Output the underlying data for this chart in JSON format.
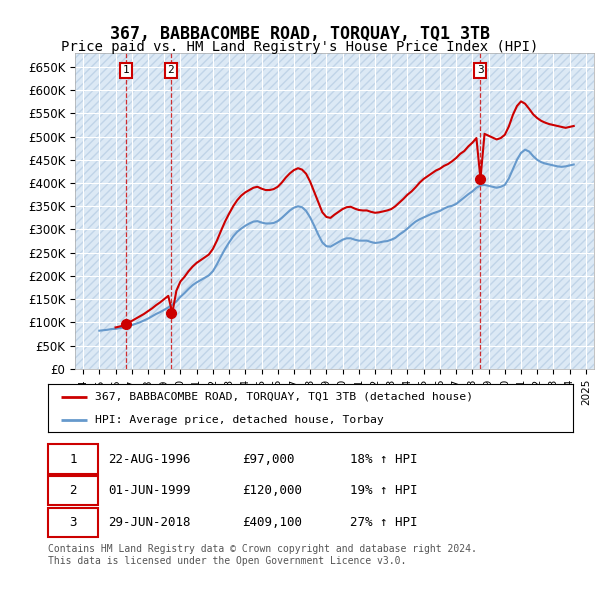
{
  "title": "367, BABBACOMBE ROAD, TORQUAY, TQ1 3TB",
  "subtitle": "Price paid vs. HM Land Registry's House Price Index (HPI)",
  "title_fontsize": 12,
  "subtitle_fontsize": 10,
  "bg_color": "#dce9f5",
  "hatch_color": "#c0d4e8",
  "red_color": "#cc0000",
  "blue_color": "#6699cc",
  "ylim": [
    0,
    680000
  ],
  "yticks": [
    0,
    50000,
    100000,
    150000,
    200000,
    250000,
    300000,
    350000,
    400000,
    450000,
    500000,
    550000,
    600000,
    650000
  ],
  "ytick_labels": [
    "£0",
    "£50K",
    "£100K",
    "£150K",
    "£200K",
    "£250K",
    "£300K",
    "£350K",
    "£400K",
    "£450K",
    "£500K",
    "£550K",
    "£600K",
    "£650K"
  ],
  "xlim_start": 1993.5,
  "xlim_end": 2025.5,
  "xtick_years": [
    1994,
    1995,
    1996,
    1997,
    1998,
    1999,
    2000,
    2001,
    2002,
    2003,
    2004,
    2005,
    2006,
    2007,
    2008,
    2009,
    2010,
    2011,
    2012,
    2013,
    2014,
    2015,
    2016,
    2017,
    2018,
    2019,
    2020,
    2021,
    2022,
    2023,
    2024,
    2025
  ],
  "sale_dates": [
    1996.644,
    1999.415,
    2018.49
  ],
  "sale_prices": [
    97000,
    120000,
    409100
  ],
  "sale_labels": [
    "1",
    "2",
    "3"
  ],
  "legend_red": "367, BABBACOMBE ROAD, TORQUAY, TQ1 3TB (detached house)",
  "legend_blue": "HPI: Average price, detached house, Torbay",
  "table_rows": [
    [
      "1",
      "22-AUG-1996",
      "£97,000",
      "18% ↑ HPI"
    ],
    [
      "2",
      "01-JUN-1999",
      "£120,000",
      "19% ↑ HPI"
    ],
    [
      "3",
      "29-JUN-2018",
      "£409,100",
      "27% ↑ HPI"
    ]
  ],
  "footer": "Contains HM Land Registry data © Crown copyright and database right 2024.\nThis data is licensed under the Open Government Licence v3.0.",
  "hpi_years": [
    1995.0,
    1995.25,
    1995.5,
    1995.75,
    1996.0,
    1996.25,
    1996.5,
    1996.75,
    1997.0,
    1997.25,
    1997.5,
    1997.75,
    1998.0,
    1998.25,
    1998.5,
    1998.75,
    1999.0,
    1999.25,
    1999.5,
    1999.75,
    2000.0,
    2000.25,
    2000.5,
    2000.75,
    2001.0,
    2001.25,
    2001.5,
    2001.75,
    2002.0,
    2002.25,
    2002.5,
    2002.75,
    2003.0,
    2003.25,
    2003.5,
    2003.75,
    2004.0,
    2004.25,
    2004.5,
    2004.75,
    2005.0,
    2005.25,
    2005.5,
    2005.75,
    2006.0,
    2006.25,
    2006.5,
    2006.75,
    2007.0,
    2007.25,
    2007.5,
    2007.75,
    2008.0,
    2008.25,
    2008.5,
    2008.75,
    2009.0,
    2009.25,
    2009.5,
    2009.75,
    2010.0,
    2010.25,
    2010.5,
    2010.75,
    2011.0,
    2011.25,
    2011.5,
    2011.75,
    2012.0,
    2012.25,
    2012.5,
    2012.75,
    2013.0,
    2013.25,
    2013.5,
    2013.75,
    2014.0,
    2014.25,
    2014.5,
    2014.75,
    2015.0,
    2015.25,
    2015.5,
    2015.75,
    2016.0,
    2016.25,
    2016.5,
    2016.75,
    2017.0,
    2017.25,
    2017.5,
    2017.75,
    2018.0,
    2018.25,
    2018.5,
    2018.75,
    2019.0,
    2019.25,
    2019.5,
    2019.75,
    2020.0,
    2020.25,
    2020.5,
    2020.75,
    2021.0,
    2021.25,
    2021.5,
    2021.75,
    2022.0,
    2022.25,
    2022.5,
    2022.75,
    2023.0,
    2023.25,
    2023.5,
    2023.75,
    2024.0,
    2024.25
  ],
  "hpi_values": [
    82000,
    83000,
    84000,
    85500,
    86000,
    87500,
    89000,
    91000,
    94000,
    97000,
    100000,
    104000,
    108000,
    113000,
    118000,
    122000,
    127000,
    132000,
    138000,
    145000,
    155000,
    163000,
    172000,
    180000,
    186000,
    191000,
    196000,
    201000,
    210000,
    225000,
    242000,
    258000,
    272000,
    285000,
    295000,
    302000,
    308000,
    313000,
    317000,
    318000,
    315000,
    313000,
    313000,
    314000,
    318000,
    325000,
    333000,
    341000,
    347000,
    350000,
    348000,
    340000,
    326000,
    308000,
    289000,
    272000,
    264000,
    263000,
    268000,
    273000,
    278000,
    281000,
    281000,
    278000,
    276000,
    276000,
    276000,
    273000,
    271000,
    272000,
    274000,
    275000,
    278000,
    282000,
    289000,
    295000,
    302000,
    310000,
    317000,
    322000,
    326000,
    330000,
    334000,
    337000,
    340000,
    345000,
    349000,
    351000,
    355000,
    362000,
    369000,
    376000,
    382000,
    390000,
    395000,
    396000,
    394000,
    392000,
    390000,
    392000,
    396000,
    410000,
    430000,
    450000,
    465000,
    472000,
    468000,
    458000,
    450000,
    445000,
    442000,
    440000,
    438000,
    436000,
    435000,
    436000,
    438000,
    440000
  ],
  "red_years": [
    1996.0,
    1996.25,
    1996.5,
    1996.75,
    1997.0,
    1997.25,
    1997.5,
    1997.75,
    1998.0,
    1998.25,
    1998.5,
    1998.75,
    1999.0,
    1999.25,
    1999.5,
    1999.75,
    2000.0,
    2000.25,
    2000.5,
    2000.75,
    2001.0,
    2001.25,
    2001.5,
    2001.75,
    2002.0,
    2002.25,
    2002.5,
    2002.75,
    2003.0,
    2003.25,
    2003.5,
    2003.75,
    2004.0,
    2004.25,
    2004.5,
    2004.75,
    2005.0,
    2005.25,
    2005.5,
    2005.75,
    2006.0,
    2006.25,
    2006.5,
    2006.75,
    2007.0,
    2007.25,
    2007.5,
    2007.75,
    2008.0,
    2008.25,
    2008.5,
    2008.75,
    2009.0,
    2009.25,
    2009.5,
    2009.75,
    2010.0,
    2010.25,
    2010.5,
    2010.75,
    2011.0,
    2011.25,
    2011.5,
    2011.75,
    2012.0,
    2012.25,
    2012.5,
    2012.75,
    2013.0,
    2013.25,
    2013.5,
    2013.75,
    2014.0,
    2014.25,
    2014.5,
    2014.75,
    2015.0,
    2015.25,
    2015.5,
    2015.75,
    2016.0,
    2016.25,
    2016.5,
    2016.75,
    2017.0,
    2017.25,
    2017.5,
    2017.75,
    2018.0,
    2018.25,
    2018.5,
    2018.75,
    2019.0,
    2019.25,
    2019.5,
    2019.75,
    2020.0,
    2020.25,
    2020.5,
    2020.75,
    2021.0,
    2021.25,
    2021.5,
    2021.75,
    2022.0,
    2022.25,
    2022.5,
    2022.75,
    2023.0,
    2023.25,
    2023.5,
    2023.75,
    2024.0,
    2024.25
  ],
  "red_values": [
    89000,
    91000,
    93000,
    99000,
    103000,
    108000,
    113000,
    118000,
    124000,
    130000,
    137000,
    143000,
    150000,
    157000,
    120000,
    168000,
    188000,
    198000,
    210000,
    220000,
    228000,
    234000,
    240000,
    246000,
    258000,
    276000,
    297000,
    317000,
    334000,
    350000,
    363000,
    373000,
    380000,
    385000,
    390000,
    392000,
    388000,
    385000,
    385000,
    387000,
    392000,
    401000,
    412000,
    421000,
    428000,
    432000,
    429000,
    420000,
    403000,
    381000,
    359000,
    337000,
    327000,
    325000,
    332000,
    338000,
    344000,
    348000,
    349000,
    345000,
    342000,
    341000,
    341000,
    338000,
    336000,
    337000,
    339000,
    341000,
    344000,
    350000,
    358000,
    366000,
    375000,
    382000,
    391000,
    401000,
    409000,
    415000,
    421000,
    427000,
    431000,
    437000,
    441000,
    447000,
    454000,
    463000,
    469000,
    479000,
    487000,
    497000,
    409100,
    506000,
    502000,
    498000,
    494000,
    497000,
    504000,
    522000,
    547000,
    566000,
    576000,
    571000,
    560000,
    548000,
    540000,
    534000,
    530000,
    527000,
    525000,
    523000,
    521000,
    519000,
    521000,
    523000
  ]
}
